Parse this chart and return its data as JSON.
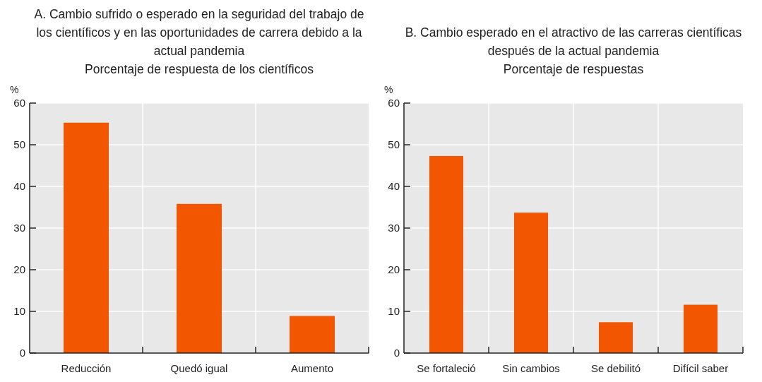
{
  "chart_data": [
    {
      "type": "bar",
      "title": "A. Cambio sufrido o esperado en la seguridad del trabajo de los científicos y en las oportunidades de carrera debido a la actual pandemia",
      "subtitle": "Porcentaje de respuesta de los científicos",
      "ylabel": "%",
      "categories": [
        "Reducción",
        "Quedó igual",
        "Aumento"
      ],
      "values": [
        55.3,
        35.8,
        8.9
      ],
      "color": "#f25600",
      "ylim": [
        0,
        60
      ],
      "yticks": [
        0,
        10,
        20,
        30,
        40,
        50,
        60
      ],
      "grid": true
    },
    {
      "type": "bar",
      "title": "B. Cambio esperado en el atractivo de las carreras científicas después de la actual pandemia",
      "subtitle": "Porcentaje de respuestas",
      "ylabel": "%",
      "categories": [
        "Se fortaleció",
        "Sin cambios",
        "Se debilitó",
        "Difícil saber"
      ],
      "values": [
        47.3,
        33.7,
        7.4,
        11.6
      ],
      "color": "#f25600",
      "ylim": [
        0,
        60
      ],
      "yticks": [
        0,
        10,
        20,
        30,
        40,
        50,
        60
      ],
      "grid": true
    }
  ]
}
